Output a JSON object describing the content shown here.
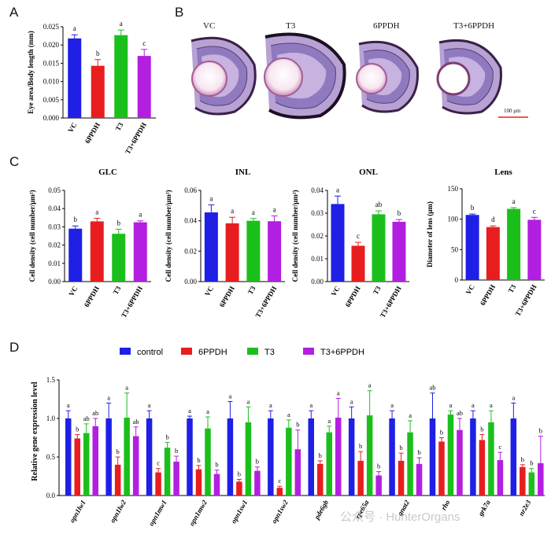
{
  "panels": {
    "A": "A",
    "B": "B",
    "C": "C",
    "D": "D"
  },
  "micrographs": {
    "labels": [
      "VC",
      "T3",
      "6PPDH",
      "T3+6PPDH"
    ],
    "scale_bar": "100 μm"
  },
  "colors": {
    "blue": "#1f1fe6",
    "red": "#e81e1e",
    "green": "#1bbf1b",
    "purple": "#b31fe0"
  },
  "watermark": "公众号 · HunterOrgans",
  "chart_data": [
    {
      "id": "A",
      "type": "bar",
      "title": "",
      "ylabel": "Eye area/Body length (mm)",
      "categories": [
        "VC",
        "6PPDH",
        "T3",
        "T3+6PPDH"
      ],
      "values": [
        0.0218,
        0.0143,
        0.0227,
        0.017
      ],
      "errors": [
        0.001,
        0.0017,
        0.0014,
        0.0018
      ],
      "letters": [
        "a",
        "b",
        "a",
        "c"
      ],
      "ylim": [
        0,
        0.025
      ],
      "yticks": [
        "0.000",
        "0.005",
        "0.010",
        "0.015",
        "0.020",
        "0.025"
      ]
    },
    {
      "id": "GLC",
      "type": "bar",
      "title": "GLC",
      "ylabel": "Cell density (cell number/μm²)",
      "categories": [
        "VC",
        "6PPDH",
        "T3",
        "T3+6PPDH"
      ],
      "values": [
        0.029,
        0.033,
        0.0262,
        0.0325
      ],
      "errors": [
        0.0015,
        0.0017,
        0.0025,
        0.0008
      ],
      "letters": [
        "b",
        "a",
        "b",
        "a"
      ],
      "ylim": [
        0,
        0.05
      ],
      "yticks": [
        "0.00",
        "0.01",
        "0.02",
        "0.03",
        "0.04",
        "0.05"
      ]
    },
    {
      "id": "INL",
      "type": "bar",
      "title": "INL",
      "ylabel": "Cell density (cell number/μm²)",
      "categories": [
        "VC",
        "6PPDH",
        "T3",
        "T3+6PPDH"
      ],
      "values": [
        0.0455,
        0.0383,
        0.04,
        0.0397
      ],
      "errors": [
        0.005,
        0.004,
        0.0015,
        0.0035
      ],
      "letters": [
        "a",
        "a",
        "a",
        "a"
      ],
      "ylim": [
        0,
        0.06
      ],
      "yticks": [
        "0.00",
        "0.02",
        "0.04",
        "0.06"
      ]
    },
    {
      "id": "ONL",
      "type": "bar",
      "title": "ONL",
      "ylabel": "Cell density (cell number/μm²)",
      "categories": [
        "VC",
        "6PPDH",
        "T3",
        "T3+6PPDH"
      ],
      "values": [
        0.034,
        0.0157,
        0.0295,
        0.0262
      ],
      "errors": [
        0.0035,
        0.0015,
        0.0015,
        0.001
      ],
      "letters": [
        "a",
        "c",
        "ab",
        "b"
      ],
      "ylim": [
        0,
        0.04
      ],
      "yticks": [
        "0.00",
        "0.01",
        "0.02",
        "0.03",
        "0.04"
      ]
    },
    {
      "id": "Lens",
      "type": "bar",
      "title": "Lens",
      "ylabel": "Diameter of lens (μm)",
      "categories": [
        "VC",
        "6PPDH",
        "T3",
        "T3+6PPDH"
      ],
      "values": [
        107,
        87,
        117,
        99
      ],
      "errors": [
        1.5,
        2,
        2,
        4
      ],
      "letters": [
        "b",
        "d",
        "a",
        "c"
      ],
      "ylim": [
        0,
        150
      ],
      "yticks": [
        "0",
        "50",
        "100",
        "150"
      ]
    },
    {
      "id": "D",
      "type": "bar",
      "title": "",
      "ylabel": "Relative gene expression level",
      "legend": [
        "control",
        "6PPDH",
        "T3",
        "T3+6PPDH"
      ],
      "categories": [
        "opn1lw1",
        "opn1lw2",
        "opn1mw1",
        "opn1mw2",
        "opn1sw1",
        "opn1sw2",
        "pde6gb",
        "rpe65a",
        "gnat2",
        "rho",
        "grk7a",
        "nr2e3"
      ],
      "series": [
        {
          "name": "control",
          "values": [
            1.0,
            1.0,
            1.0,
            1.0,
            1.0,
            1.0,
            1.0,
            1.0,
            1.0,
            1.0,
            1.0,
            1.0
          ],
          "errors": [
            0.1,
            0.2,
            0.1,
            0.03,
            0.22,
            0.1,
            0.1,
            0.15,
            0.1,
            0.33,
            0.1,
            0.2
          ],
          "letters": [
            "a",
            "a",
            "a",
            "a",
            "a",
            "a",
            "a",
            "a",
            "a",
            "ab",
            "a",
            "a"
          ]
        },
        {
          "name": "6PPDH",
          "values": [
            0.74,
            0.4,
            0.3,
            0.34,
            0.18,
            0.1,
            0.41,
            0.45,
            0.45,
            0.7,
            0.72,
            0.37
          ],
          "errors": [
            0.05,
            0.1,
            0.05,
            0.05,
            0.03,
            0.02,
            0.04,
            0.12,
            0.1,
            0.05,
            0.07,
            0.03
          ],
          "letters": [
            "b",
            "b",
            "c",
            "b",
            "b",
            "c",
            "b",
            "b",
            "b",
            "b",
            "b",
            "b"
          ]
        },
        {
          "name": "T3",
          "values": [
            0.81,
            1.01,
            0.62,
            0.87,
            0.95,
            0.88,
            0.82,
            1.04,
            0.82,
            1.05,
            0.95,
            0.3
          ],
          "errors": [
            0.12,
            0.32,
            0.07,
            0.15,
            0.2,
            0.1,
            0.08,
            0.32,
            0.15,
            0.05,
            0.15,
            0.05
          ],
          "letters": [
            "ab",
            "a",
            "b",
            "a",
            "a",
            "a",
            "a",
            "a",
            "a",
            "a",
            "a",
            "b"
          ]
        },
        {
          "name": "T3+6PPDH",
          "values": [
            0.9,
            0.77,
            0.44,
            0.28,
            0.32,
            0.6,
            1.01,
            0.26,
            0.41,
            0.85,
            0.46,
            0.42
          ],
          "errors": [
            0.1,
            0.12,
            0.07,
            0.05,
            0.05,
            0.25,
            0.25,
            0.05,
            0.08,
            0.15,
            0.1,
            0.35
          ],
          "letters": [
            "ab",
            "ab",
            "b",
            "b",
            "b",
            "b",
            "a",
            "b",
            "b",
            "ab",
            "c",
            "b"
          ]
        }
      ],
      "ylim": [
        0,
        1.5
      ],
      "yticks": [
        "0.0",
        "0.5",
        "1.0",
        "1.5"
      ]
    }
  ]
}
